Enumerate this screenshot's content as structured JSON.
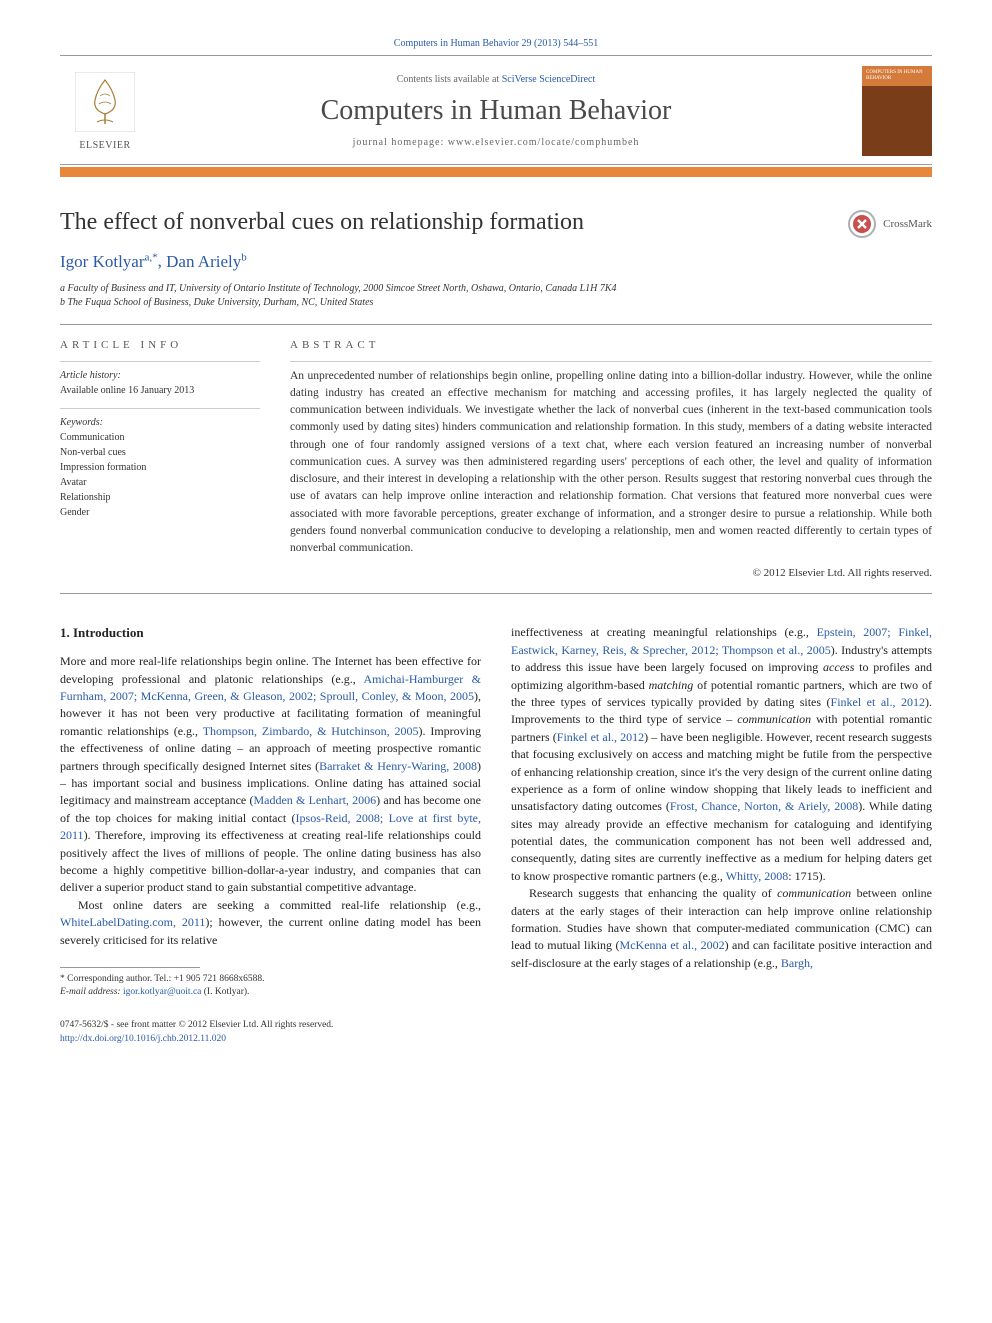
{
  "citation_top": "Computers in Human Behavior 29 (2013) 544–551",
  "masthead": {
    "contents_available_prefix": "Contents lists available at ",
    "contents_available_link": "SciVerse ScienceDirect",
    "journal_name": "Computers in Human Behavior",
    "homepage_prefix": "journal homepage: ",
    "homepage_url": "www.elsevier.com/locate/comphumbeh",
    "publisher_name": "ELSEVIER",
    "cover_label": "COMPUTERS IN HUMAN BEHAVIOR"
  },
  "crossmark_label": "CrossMark",
  "title": "The effect of nonverbal cues on relationship formation",
  "authors_html": "Igor Kotlyar <sup>a,</sup>*, Dan Ariely <sup>b</sup>",
  "authors": [
    {
      "name": "Igor Kotlyar",
      "marks": "a,*"
    },
    {
      "name": "Dan Ariely",
      "marks": "b"
    }
  ],
  "affiliations": [
    "a Faculty of Business and IT, University of Ontario Institute of Technology, 2000 Simcoe Street North, Oshawa, Ontario, Canada L1H 7K4",
    "b The Fuqua School of Business, Duke University, Durham, NC, United States"
  ],
  "info": {
    "section_label": "ARTICLE INFO",
    "history_label": "Article history:",
    "history": "Available online 16 January 2013",
    "keywords_label": "Keywords:",
    "keywords": [
      "Communication",
      "Non-verbal cues",
      "Impression formation",
      "Avatar",
      "Relationship",
      "Gender"
    ]
  },
  "abstract": {
    "section_label": "ABSTRACT",
    "text": "An unprecedented number of relationships begin online, propelling online dating into a billion-dollar industry. However, while the online dating industry has created an effective mechanism for matching and accessing profiles, it has largely neglected the quality of communication between individuals. We investigate whether the lack of nonverbal cues (inherent in the text-based communication tools commonly used by dating sites) hinders communication and relationship formation. In this study, members of a dating website interacted through one of four randomly assigned versions of a text chat, where each version featured an increasing number of nonverbal communication cues. A survey was then administered regarding users' perceptions of each other, the level and quality of information disclosure, and their interest in developing a relationship with the other person. Results suggest that restoring nonverbal cues through the use of avatars can help improve online interaction and relationship formation. Chat versions that featured more nonverbal cues were associated with more favorable perceptions, greater exchange of information, and a stronger desire to pursue a relationship. While both genders found nonverbal communication conducive to developing a relationship, men and women reacted differently to certain types of nonverbal communication.",
    "copyright": "© 2012 Elsevier Ltd. All rights reserved."
  },
  "body": {
    "intro_heading": "1. Introduction",
    "left_p1": "More and more real-life relationships begin online. The Internet has been effective for developing professional and platonic relationships (e.g., Amichai-Hamburger & Furnham, 2007; McKenna, Green, & Gleason, 2002; Sproull, Conley, & Moon, 2005), however it has not been very productive at facilitating formation of meaningful romantic relationships (e.g., Thompson, Zimbardo, & Hutchinson, 2005). Improving the effectiveness of online dating – an approach of meeting prospective romantic partners through specifically designed Internet sites (Barraket & Henry-Waring, 2008) – has important social and business implications. Online dating has attained social legitimacy and mainstream acceptance (Madden & Lenhart, 2006) and has become one of the top choices for making initial contact (Ipsos-Reid, 2008; Love at first byte, 2011). Therefore, improving its effectiveness at creating real-life relationships could positively affect the lives of millions of people. The online dating business has also become a highly competitive billion-dollar-a-year industry, and companies that can deliver a superior product stand to gain substantial competitive advantage.",
    "left_p2": "Most online daters are seeking a committed real-life relationship (e.g., WhiteLabelDating.com, 2011); however, the current online dating model has been severely criticised for its relative",
    "right_p1": "ineffectiveness at creating meaningful relationships (e.g., Epstein, 2007; Finkel, Eastwick, Karney, Reis, & Sprecher, 2012; Thompson et al., 2005). Industry's attempts to address this issue have been largely focused on improving access to profiles and optimizing algorithm-based matching of potential romantic partners, which are two of the three types of services typically provided by dating sites (Finkel et al., 2012). Improvements to the third type of service – communication with potential romantic partners (Finkel et al., 2012) – have been negligible. However, recent research suggests that focusing exclusively on access and matching might be futile from the perspective of enhancing relationship creation, since it's the very design of the current online dating experience as a form of online window shopping that likely leads to inefficient and unsatisfactory dating outcomes (Frost, Chance, Norton, & Ariely, 2008). While dating sites may already provide an effective mechanism for cataloguing and identifying potential dates, the communication component has not been well addressed and, consequently, dating sites are currently ineffective as a medium for helping daters get to know prospective romantic partners (e.g., Whitty, 2008: 1715).",
    "right_p2": "Research suggests that enhancing the quality of communication between online daters at the early stages of their interaction can help improve online relationship formation. Studies have shown that computer-mediated communication (CMC) can lead to mutual liking (McKenna et al., 2002) and can facilitate positive interaction and self-disclosure at the early stages of a relationship (e.g., Bargh,"
  },
  "footnote": {
    "corresponding": "* Corresponding author. Tel.: +1 905 721 8668x6588.",
    "email_label": "E-mail address:",
    "email": "igor.kotlyar@uoit.ca",
    "email_attribution": "(I. Kotlyar)."
  },
  "bottom": {
    "issn_line": "0747-5632/$ - see front matter © 2012 Elsevier Ltd. All rights reserved.",
    "doi": "http://dx.doi.org/10.1016/j.chb.2012.11.020"
  },
  "colors": {
    "link": "#2a5aa8",
    "accent_bar": "#e8863c",
    "text": "#1a1a1a",
    "muted": "#666666",
    "border": "#999999"
  },
  "typography": {
    "body_font": "Georgia, serif",
    "journal_name_size_pt": 28,
    "title_size_pt": 24,
    "authors_size_pt": 17,
    "body_size_pt": 12,
    "abstract_size_pt": 11.5,
    "footnote_size_pt": 9.5
  }
}
